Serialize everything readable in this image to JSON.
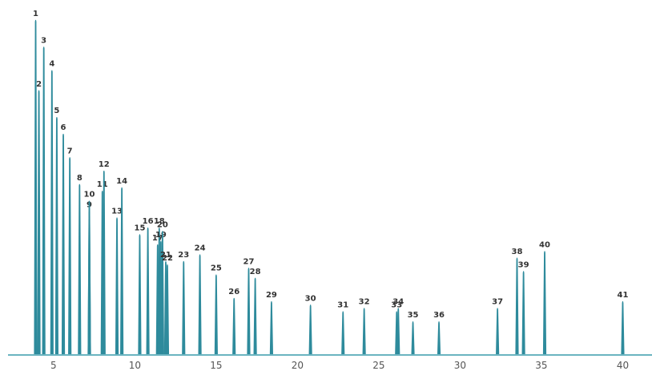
{
  "chart_data": {
    "type": "line",
    "subtype": "chromatogram",
    "title": "",
    "xlabel": "",
    "ylabel": "",
    "xlim": [
      2.2,
      41.8
    ],
    "ylim": [
      0,
      100
    ],
    "x_ticks": [
      5,
      10,
      15,
      20,
      25,
      30,
      35,
      40
    ],
    "series": [
      {
        "peaks": [
          {
            "label": "1",
            "x": 3.9,
            "y": 100
          },
          {
            "label": "2",
            "x": 4.1,
            "y": 79
          },
          {
            "label": "3",
            "x": 4.4,
            "y": 92
          },
          {
            "label": "4",
            "x": 4.9,
            "y": 85
          },
          {
            "label": "5",
            "x": 5.2,
            "y": 71
          },
          {
            "label": "6",
            "x": 5.6,
            "y": 66
          },
          {
            "label": "7",
            "x": 6.0,
            "y": 59
          },
          {
            "label": "8",
            "x": 6.6,
            "y": 51
          },
          {
            "label": "9",
            "x": 7.2,
            "y": 43
          },
          {
            "label": "10",
            "x": 7.2,
            "y": 46
          },
          {
            "label": "11",
            "x": 8.0,
            "y": 49
          },
          {
            "label": "12",
            "x": 8.1,
            "y": 55
          },
          {
            "label": "13",
            "x": 8.9,
            "y": 41
          },
          {
            "label": "14",
            "x": 9.2,
            "y": 50
          },
          {
            "label": "15",
            "x": 10.3,
            "y": 36
          },
          {
            "label": "16",
            "x": 10.8,
            "y": 38
          },
          {
            "label": "17",
            "x": 11.4,
            "y": 33
          },
          {
            "label": "18",
            "x": 11.5,
            "y": 38
          },
          {
            "label": "19",
            "x": 11.6,
            "y": 34
          },
          {
            "label": "20",
            "x": 11.7,
            "y": 37
          },
          {
            "label": "21",
            "x": 11.9,
            "y": 28
          },
          {
            "label": "22",
            "x": 12.0,
            "y": 27
          },
          {
            "label": "23",
            "x": 13.0,
            "y": 28
          },
          {
            "label": "24",
            "x": 14.0,
            "y": 30
          },
          {
            "label": "25",
            "x": 15.0,
            "y": 24
          },
          {
            "label": "26",
            "x": 16.1,
            "y": 17
          },
          {
            "label": "27",
            "x": 17.0,
            "y": 26
          },
          {
            "label": "28",
            "x": 17.4,
            "y": 23
          },
          {
            "label": "29",
            "x": 18.4,
            "y": 16
          },
          {
            "label": "30",
            "x": 20.8,
            "y": 15
          },
          {
            "label": "31",
            "x": 22.8,
            "y": 13
          },
          {
            "label": "32",
            "x": 24.1,
            "y": 14
          },
          {
            "label": "33",
            "x": 26.1,
            "y": 13
          },
          {
            "label": "34",
            "x": 26.2,
            "y": 14
          },
          {
            "label": "35",
            "x": 27.1,
            "y": 10
          },
          {
            "label": "36",
            "x": 28.7,
            "y": 10
          },
          {
            "label": "37",
            "x": 32.3,
            "y": 14
          },
          {
            "label": "38",
            "x": 33.5,
            "y": 29
          },
          {
            "label": "39",
            "x": 33.9,
            "y": 25
          },
          {
            "label": "40",
            "x": 35.2,
            "y": 31
          },
          {
            "label": "41",
            "x": 40.0,
            "y": 16
          }
        ]
      }
    ],
    "colors": {
      "trace": "#2e8b9c",
      "baseline": "#6bb4c0",
      "labels": "#333333",
      "ticks": "#555555"
    },
    "grid": false,
    "legend": "none"
  }
}
